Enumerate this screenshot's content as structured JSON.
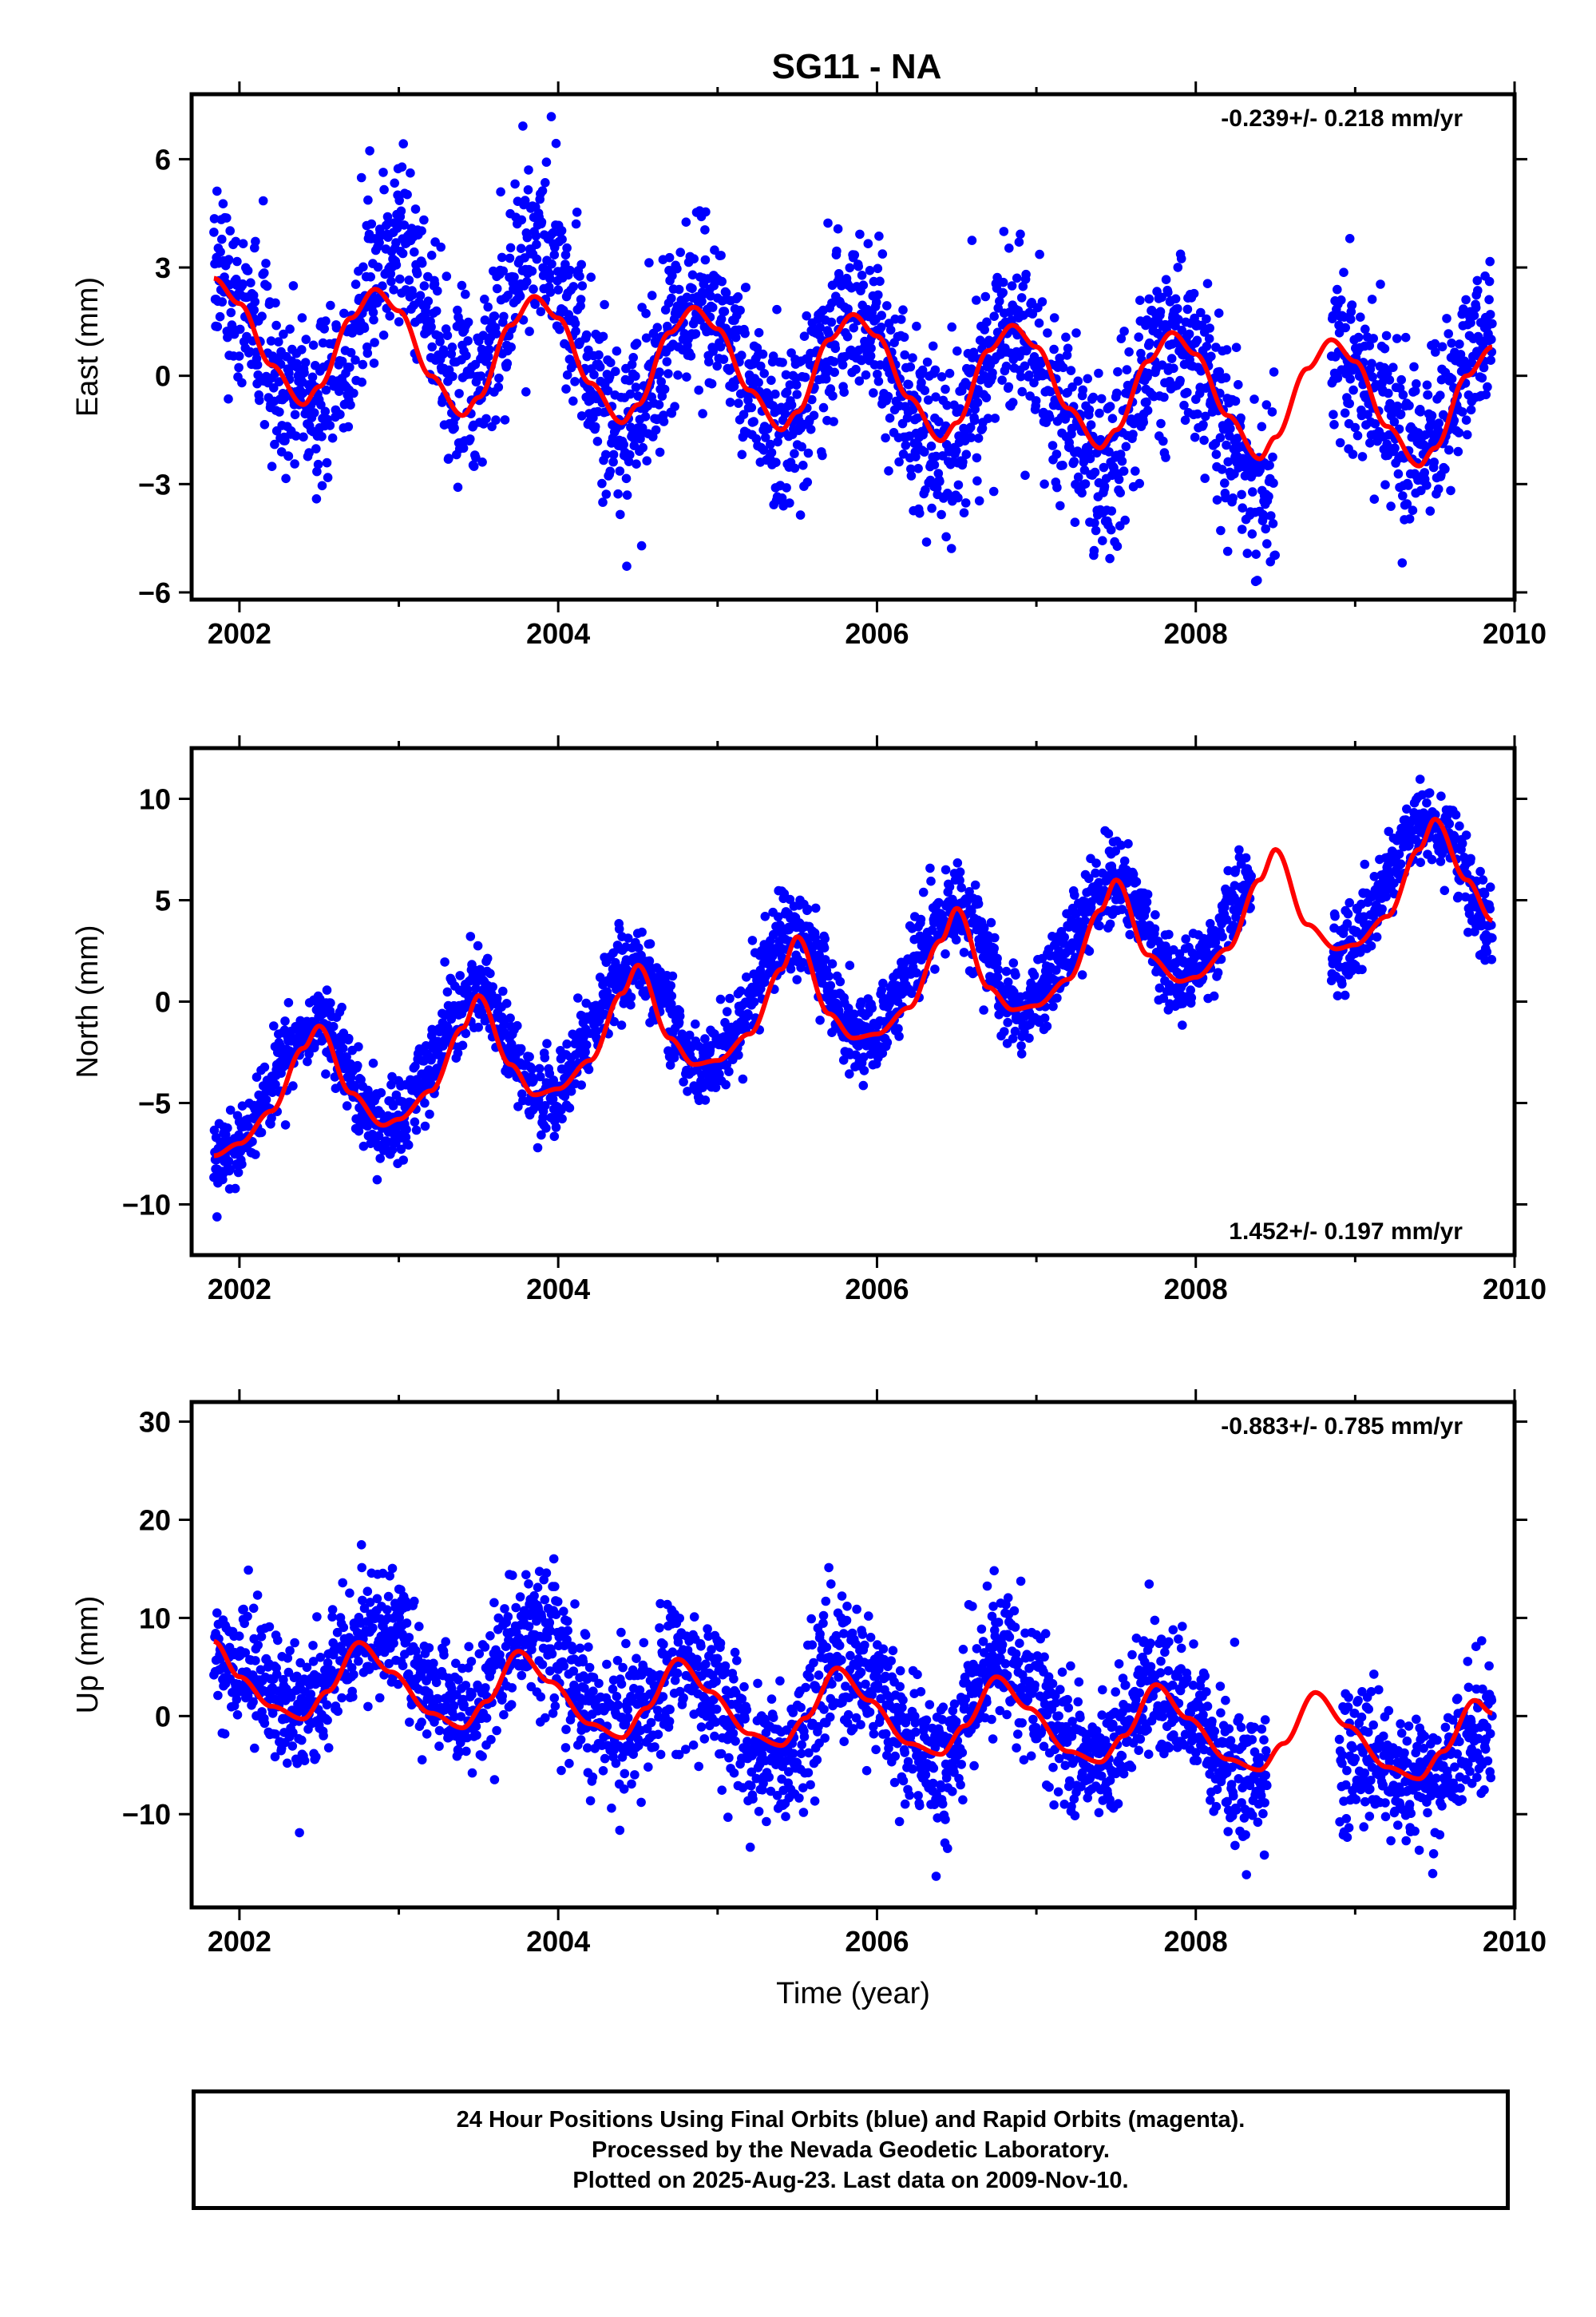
{
  "title": "SG11 - NA",
  "footer": {
    "line1": "24 Hour Positions Using Final Orbits (blue) and Rapid Orbits (magenta).",
    "line2": "Processed by the Nevada Geodetic Laboratory.",
    "line3": "Plotted on 2025-Aug-23. Last data on 2009-Nov-10."
  },
  "colors": {
    "data": "#0000ff",
    "model": "#ff0000",
    "axes": "#000000"
  },
  "chart_data": [
    {
      "type": "scatter",
      "ylabel": "East (mm)",
      "xlim": [
        2001.7,
        2010.0
      ],
      "ylim": [
        -6.2,
        7.8
      ],
      "xticks": [
        2002,
        2004,
        2006,
        2008,
        2010
      ],
      "yticks": [
        -6,
        -3,
        0,
        3,
        6
      ],
      "rate_text": "-0.239+/- 0.218 mm/yr",
      "rate_position": "top-right",
      "rate": -0.239,
      "seasonal_model": {
        "x": [
          2001.84,
          2002.0,
          2002.2,
          2002.4,
          2002.5,
          2002.7,
          2002.85,
          2003.0,
          2003.2,
          2003.4,
          2003.5,
          2003.7,
          2003.85,
          2004.0,
          2004.2,
          2004.4,
          2004.5,
          2004.7,
          2004.85,
          2005.0,
          2005.2,
          2005.4,
          2005.5,
          2005.7,
          2005.85,
          2006.0,
          2006.2,
          2006.4,
          2006.5,
          2006.7,
          2006.85,
          2007.0,
          2007.2,
          2007.4,
          2007.5,
          2007.7,
          2007.85,
          2008.0,
          2008.2,
          2008.4,
          2008.5,
          2008.7,
          2008.85,
          2009.0,
          2009.2,
          2009.4,
          2009.5,
          2009.7,
          2009.86
        ],
        "y": [
          2.7,
          2.0,
          0.3,
          -0.8,
          -0.3,
          1.6,
          2.4,
          1.8,
          0.0,
          -1.1,
          -0.6,
          1.4,
          2.2,
          1.6,
          -0.2,
          -1.3,
          -0.8,
          1.2,
          1.9,
          1.3,
          -0.4,
          -1.5,
          -1.0,
          1.0,
          1.7,
          1.1,
          -0.6,
          -1.8,
          -1.3,
          0.7,
          1.4,
          0.8,
          -0.9,
          -2.0,
          -1.5,
          0.4,
          1.2,
          0.6,
          -1.1,
          -2.3,
          -1.7,
          0.2,
          1.0,
          0.4,
          -1.4,
          -2.5,
          -2.0,
          0.0,
          0.8
        ]
      },
      "scatter_trend": {
        "x": [
          2001.84,
          2002.5,
          2003.0,
          2003.4,
          2003.9,
          2004.4,
          2004.9,
          2005.4,
          2005.85,
          2006.4,
          2006.85,
          2007.4,
          2007.85,
          2008.45,
          2008.85,
          2009.4,
          2009.86
        ],
        "y": [
          2.8,
          -0.8,
          3.8,
          -0.3,
          3.6,
          -1.5,
          2.1,
          -1.6,
          1.9,
          -2.2,
          1.2,
          -2.3,
          1.1,
          -3.2,
          0.8,
          -2.1,
          1.5
        ]
      },
      "scatter_spread": 1.2,
      "data_gap": [
        2008.5,
        2008.85
      ]
    },
    {
      "type": "scatter",
      "ylabel": "North (mm)",
      "xlim": [
        2001.7,
        2010.0
      ],
      "ylim": [
        -12.5,
        12.5
      ],
      "xticks": [
        2002,
        2004,
        2006,
        2008,
        2010
      ],
      "yticks": [
        -10,
        -5,
        0,
        5,
        10
      ],
      "rate_text": "1.452+/- 0.197 mm/yr",
      "rate_position": "bottom-right",
      "rate": 1.452,
      "seasonal_model": {
        "x": [
          2001.84,
          2002.0,
          2002.2,
          2002.4,
          2002.5,
          2002.7,
          2002.9,
          2003.0,
          2003.2,
          2003.4,
          2003.5,
          2003.7,
          2003.85,
          2004.0,
          2004.2,
          2004.4,
          2004.5,
          2004.7,
          2004.85,
          2005.0,
          2005.2,
          2005.4,
          2005.5,
          2005.7,
          2005.85,
          2006.0,
          2006.2,
          2006.4,
          2006.5,
          2006.7,
          2006.85,
          2007.0,
          2007.2,
          2007.4,
          2007.5,
          2007.7,
          2007.9,
          2008.0,
          2008.2,
          2008.4,
          2008.5,
          2008.7,
          2008.88,
          2009.0,
          2009.2,
          2009.4,
          2009.5,
          2009.7,
          2009.86
        ],
        "y": [
          -7.6,
          -7.0,
          -5.4,
          -2.3,
          -1.2,
          -4.5,
          -6.1,
          -5.8,
          -4.4,
          -1.3,
          0.3,
          -3.1,
          -4.6,
          -4.3,
          -2.9,
          0.4,
          1.8,
          -1.8,
          -3.1,
          -2.9,
          -1.6,
          1.6,
          3.2,
          -0.6,
          -1.8,
          -1.6,
          -0.3,
          3.0,
          4.6,
          0.7,
          -0.4,
          -0.2,
          1.1,
          4.5,
          6.0,
          2.3,
          1.0,
          1.2,
          2.6,
          6.0,
          7.5,
          3.8,
          2.6,
          2.8,
          4.2,
          7.5,
          9.0,
          6.0,
          4.0
        ]
      },
      "scatter_trend": {
        "x": [
          2001.84,
          2002.5,
          2002.9,
          2003.5,
          2003.9,
          2004.5,
          2004.9,
          2005.5,
          2005.9,
          2006.5,
          2006.9,
          2007.5,
          2007.9,
          2008.5,
          2008.88,
          2009.5,
          2009.86
        ],
        "y": [
          -7.8,
          -1.2,
          -6.2,
          0.3,
          -4.6,
          1.8,
          -3.2,
          3.2,
          -1.8,
          4.6,
          -0.4,
          6.0,
          1.0,
          7.5,
          2.6,
          9.0,
          4.0
        ]
      },
      "scatter_spread": 1.0,
      "data_gap": [
        2008.35,
        2008.85
      ]
    },
    {
      "type": "scatter",
      "ylabel": "Up (mm)",
      "xlabel": "Time (year)",
      "xlim": [
        2001.7,
        2010.0
      ],
      "ylim": [
        -19.5,
        32
      ],
      "xticks": [
        2002,
        2004,
        2006,
        2008,
        2010
      ],
      "yticks": [
        -10,
        0,
        10,
        20,
        30
      ],
      "rate_text": "-0.883+/- 0.785 mm/yr",
      "rate_position": "top-right",
      "rate": -0.883,
      "seasonal_model": {
        "x": [
          2001.84,
          2002.0,
          2002.2,
          2002.4,
          2002.55,
          2002.75,
          2002.95,
          2003.2,
          2003.4,
          2003.55,
          2003.75,
          2003.95,
          2004.2,
          2004.4,
          2004.55,
          2004.75,
          2004.95,
          2005.2,
          2005.4,
          2005.55,
          2005.75,
          2005.95,
          2006.2,
          2006.4,
          2006.55,
          2006.75,
          2006.95,
          2007.2,
          2007.4,
          2007.55,
          2007.75,
          2007.95,
          2008.2,
          2008.4,
          2008.55,
          2008.75,
          2008.95,
          2009.2,
          2009.4,
          2009.55,
          2009.75,
          2009.86
        ],
        "y": [
          7.6,
          4.0,
          1.0,
          -0.3,
          2.5,
          7.5,
          4.5,
          0.3,
          -1.2,
          1.5,
          6.6,
          3.5,
          -0.8,
          -2.2,
          0.8,
          5.8,
          2.5,
          -1.8,
          -3.0,
          -0.2,
          4.9,
          1.6,
          -2.8,
          -3.9,
          -1.0,
          4.0,
          0.8,
          -3.6,
          -4.7,
          -2.0,
          3.2,
          -0.2,
          -4.4,
          -5.5,
          -2.8,
          2.4,
          -1.0,
          -5.2,
          -6.4,
          -3.6,
          1.6,
          0.3
        ]
      },
      "scatter_trend": {
        "x": [
          2001.84,
          2002.4,
          2002.8,
          2003.4,
          2003.85,
          2004.4,
          2004.75,
          2005.4,
          2005.75,
          2006.4,
          2006.75,
          2007.4,
          2007.75,
          2008.4,
          2008.95,
          2009.4,
          2009.86
        ],
        "y": [
          6.0,
          0.5,
          9.0,
          0.5,
          9.0,
          -2.0,
          5.0,
          -4.5,
          5.5,
          -4.5,
          6.5,
          -5.0,
          2.5,
          -6.5,
          -4.0,
          -6.5,
          -1.5
        ]
      },
      "scatter_spread": 3.5,
      "data_gap": [
        2008.45,
        2008.9
      ]
    }
  ]
}
